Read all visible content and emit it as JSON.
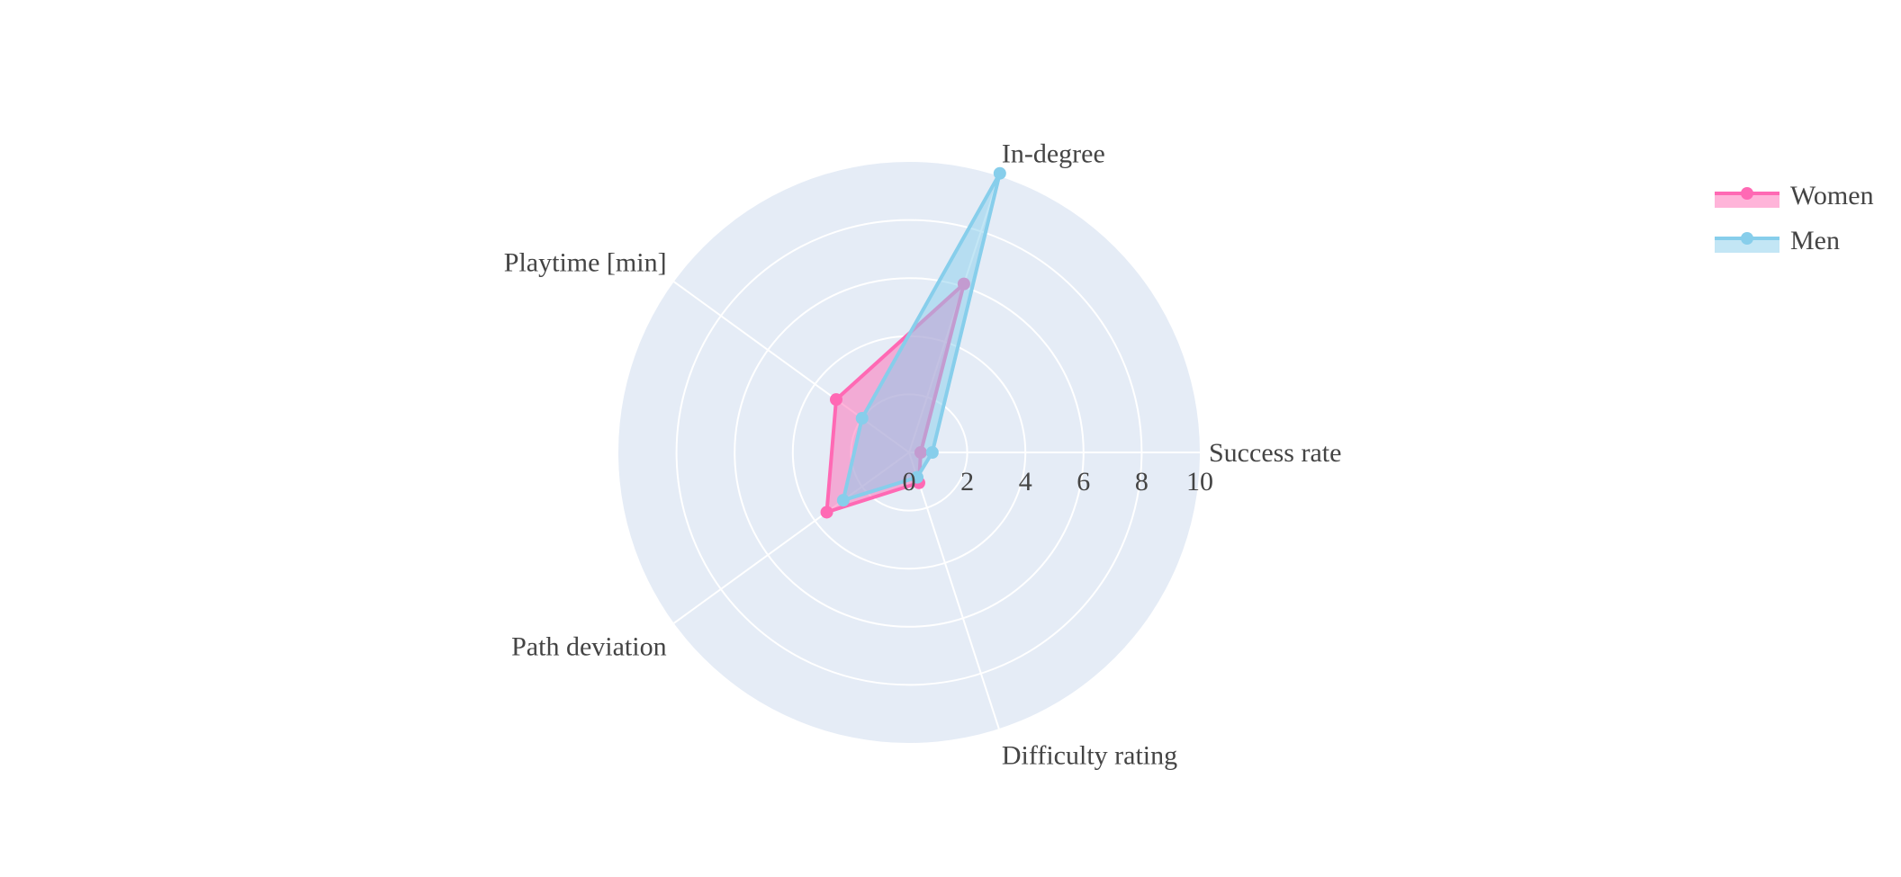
{
  "chart_data": {
    "type": "radar",
    "axes": [
      "Success rate",
      "In-degree",
      "Playtime [min]",
      "Path deviation",
      "Difficulty rating"
    ],
    "radial_range": [
      0,
      10
    ],
    "radial_ticks": [
      "0",
      "2",
      "4",
      "6",
      "8",
      "10"
    ],
    "radial_tick_values": [
      0,
      2,
      4,
      6,
      8,
      10
    ],
    "grid": true,
    "legend_position": "top-right",
    "series": [
      {
        "name": "Women",
        "values": [
          0.4,
          6.1,
          3.1,
          3.5,
          1.1
        ],
        "line_color": "#ff69b4",
        "fill_color": "#ff69b4"
      },
      {
        "name": "Men",
        "values": [
          0.8,
          10.1,
          2.0,
          2.8,
          0.9
        ],
        "line_color": "#87ceeb",
        "fill_color": "#87ceeb"
      }
    ],
    "colors": {
      "polar_background": "#e5ecf6",
      "grid": "#ffffff"
    }
  }
}
